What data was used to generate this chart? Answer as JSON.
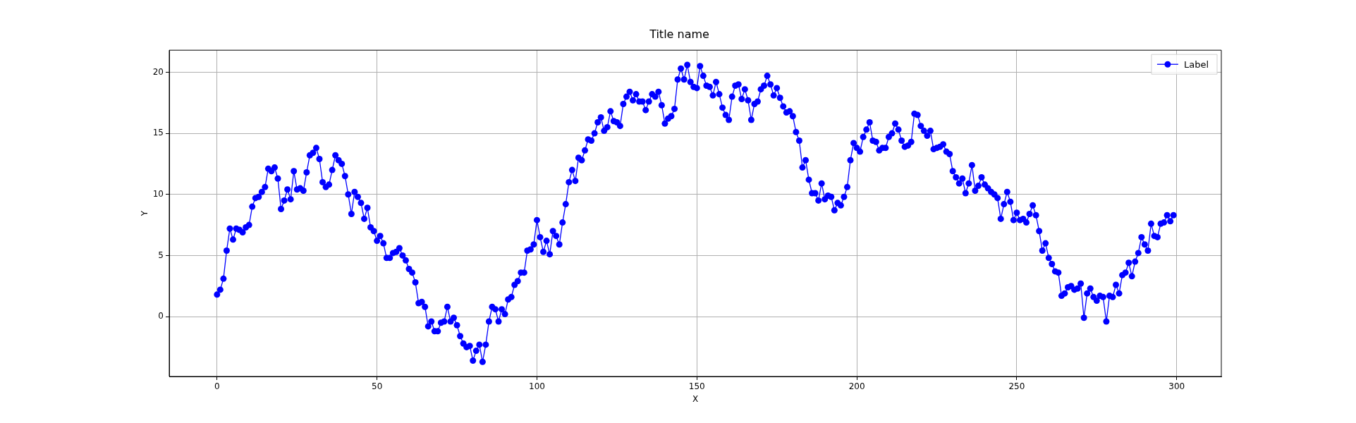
{
  "chart_data": {
    "type": "line",
    "title": "Title name",
    "xlabel": "X",
    "ylabel": "Y",
    "x": [
      0,
      1,
      2,
      3,
      4,
      5,
      6,
      7,
      8,
      9,
      10,
      11,
      12,
      13,
      14,
      15,
      16,
      17,
      18,
      19,
      20,
      21,
      22,
      23,
      24,
      25,
      26,
      27,
      28,
      29,
      30,
      31,
      32,
      33,
      34,
      35,
      36,
      37,
      38,
      39,
      40,
      41,
      42,
      43,
      44,
      45,
      46,
      47,
      48,
      49,
      50,
      51,
      52,
      53,
      54,
      55,
      56,
      57,
      58,
      59,
      60,
      61,
      62,
      63,
      64,
      65,
      66,
      67,
      68,
      69,
      70,
      71,
      72,
      73,
      74,
      75,
      76,
      77,
      78,
      79,
      80,
      81,
      82,
      83,
      84,
      85,
      86,
      87,
      88,
      89,
      90,
      91,
      92,
      93,
      94,
      95,
      96,
      97,
      98,
      99,
      100,
      101,
      102,
      103,
      104,
      105,
      106,
      107,
      108,
      109,
      110,
      111,
      112,
      113,
      114,
      115,
      116,
      117,
      118,
      119,
      120,
      121,
      122,
      123,
      124,
      125,
      126,
      127,
      128,
      129,
      130,
      131,
      132,
      133,
      134,
      135,
      136,
      137,
      138,
      139,
      140,
      141,
      142,
      143,
      144,
      145,
      146,
      147,
      148,
      149,
      150,
      151,
      152,
      153,
      154,
      155,
      156,
      157,
      158,
      159,
      160,
      161,
      162,
      163,
      164,
      165,
      166,
      167,
      168,
      169,
      170,
      171,
      172,
      173,
      174,
      175,
      176,
      177,
      178,
      179,
      180,
      181,
      182,
      183,
      184,
      185,
      186,
      187,
      188,
      189,
      190,
      191,
      192,
      193,
      194,
      195,
      196,
      197,
      198,
      199,
      200,
      201,
      202,
      203,
      204,
      205,
      206,
      207,
      208,
      209,
      210,
      211,
      212,
      213,
      214,
      215,
      216,
      217,
      218,
      219,
      220,
      221,
      222,
      223,
      224,
      225,
      226,
      227,
      228,
      229,
      230,
      231,
      232,
      233,
      234,
      235,
      236,
      237,
      238,
      239,
      240,
      241,
      242,
      243,
      244,
      245,
      246,
      247,
      248,
      249,
      250,
      251,
      252,
      253,
      254,
      255,
      256,
      257,
      258,
      259,
      260,
      261,
      262,
      263,
      264,
      265,
      266,
      267,
      268,
      269,
      270,
      271,
      272,
      273,
      274,
      275,
      276,
      277,
      278,
      279,
      280,
      281,
      282,
      283,
      284,
      285,
      286,
      287,
      288,
      289,
      290,
      291,
      292,
      293,
      294,
      295,
      296,
      297,
      298,
      299
    ],
    "series": [
      {
        "name": "Label",
        "color": "#0000ff",
        "values": [
          1.8,
          2.2,
          3.1,
          5.4,
          7.2,
          6.3,
          7.2,
          7.1,
          6.9,
          7.3,
          7.5,
          9.0,
          9.7,
          9.8,
          10.2,
          10.6,
          12.1,
          11.9,
          12.2,
          11.3,
          8.8,
          9.5,
          10.4,
          9.6,
          11.9,
          10.4,
          10.5,
          10.3,
          11.8,
          13.2,
          13.4,
          13.8,
          12.9,
          11.0,
          10.6,
          10.8,
          12.0,
          13.2,
          12.8,
          12.5,
          11.5,
          10.0,
          8.4,
          10.2,
          9.8,
          9.3,
          8.0,
          8.9,
          7.3,
          7.0,
          6.2,
          6.6,
          6.0,
          4.8,
          4.8,
          5.2,
          5.3,
          5.6,
          5.0,
          4.6,
          3.9,
          3.6,
          2.8,
          1.1,
          1.2,
          0.8,
          -0.8,
          -0.4,
          -1.2,
          -1.2,
          -0.5,
          -0.4,
          0.8,
          -0.4,
          -0.1,
          -0.7,
          -1.6,
          -2.2,
          -2.5,
          -2.4,
          -3.6,
          -2.8,
          -2.3,
          -3.7,
          -2.3,
          -0.4,
          0.8,
          0.6,
          -0.4,
          0.6,
          0.2,
          1.4,
          1.6,
          2.6,
          2.9,
          3.6,
          3.6,
          5.4,
          5.5,
          5.9,
          7.9,
          6.5,
          5.3,
          6.2,
          5.1,
          7.0,
          6.6,
          5.9,
          7.7,
          9.2,
          11.0,
          12.0,
          11.1,
          13.0,
          12.8,
          13.6,
          14.5,
          14.4,
          15.0,
          15.9,
          16.3,
          15.2,
          15.5,
          16.8,
          16.0,
          15.9,
          15.6,
          17.4,
          18.0,
          18.4,
          17.7,
          18.2,
          17.6,
          17.6,
          16.9,
          17.6,
          18.2,
          18.0,
          18.4,
          17.3,
          15.8,
          16.2,
          16.4,
          17.0,
          19.4,
          20.3,
          19.4,
          20.6,
          19.2,
          18.8,
          18.7,
          20.5,
          19.7,
          18.9,
          18.8,
          18.1,
          19.2,
          18.2,
          17.1,
          16.5,
          16.1,
          18.0,
          18.9,
          19.0,
          17.8,
          18.6,
          17.7,
          16.1,
          17.4,
          17.6,
          18.6,
          18.9,
          19.7,
          19.0,
          18.1,
          18.7,
          17.9,
          17.2,
          16.7,
          16.8,
          16.4,
          15.1,
          14.4,
          12.2,
          12.8,
          11.2,
          10.1,
          10.1,
          9.5,
          10.9,
          9.6,
          9.9,
          9.8,
          8.7,
          9.3,
          9.1,
          9.8,
          10.6,
          12.8,
          14.2,
          13.8,
          13.5,
          14.7,
          15.3,
          15.9,
          14.4,
          14.3,
          13.6,
          13.8,
          13.8,
          14.7,
          15.0,
          15.8,
          15.3,
          14.4,
          13.9,
          14.0,
          14.3,
          16.6,
          16.5,
          15.6,
          15.2,
          14.8,
          15.2,
          13.7,
          13.8,
          13.9,
          14.1,
          13.5,
          13.3,
          11.9,
          11.4,
          10.9,
          11.3,
          10.1,
          10.9,
          12.4,
          10.3,
          10.7,
          11.4,
          10.8,
          10.5,
          10.2,
          10.0,
          9.7,
          8.0,
          9.2,
          10.2,
          9.4,
          7.9,
          8.5,
          7.9,
          8.0,
          7.7,
          8.4,
          9.1,
          8.3,
          7.0,
          5.4,
          6.0,
          4.8,
          4.3,
          3.7,
          3.6,
          1.7,
          1.9,
          2.4,
          2.5,
          2.2,
          2.3,
          2.7,
          -0.1,
          1.9,
          2.3,
          1.6,
          1.3,
          1.7,
          1.6,
          -0.4,
          1.7,
          1.6,
          2.6,
          1.9,
          3.4,
          3.6,
          4.4,
          3.3,
          4.5,
          5.2,
          6.5,
          5.9,
          5.4,
          7.6,
          6.6,
          6.5,
          7.6,
          7.7,
          8.3,
          7.8,
          8.3
        ]
      }
    ],
    "xlim": [
      -14.95,
      313.95
    ],
    "ylim": [
      -4.9,
      21.8
    ],
    "xticks": [
      0,
      50,
      100,
      150,
      200,
      250,
      300
    ],
    "yticks": [
      0,
      5,
      10,
      15,
      20
    ],
    "grid": true,
    "legend": "top right",
    "marker": "circle",
    "line_style": "solid"
  }
}
